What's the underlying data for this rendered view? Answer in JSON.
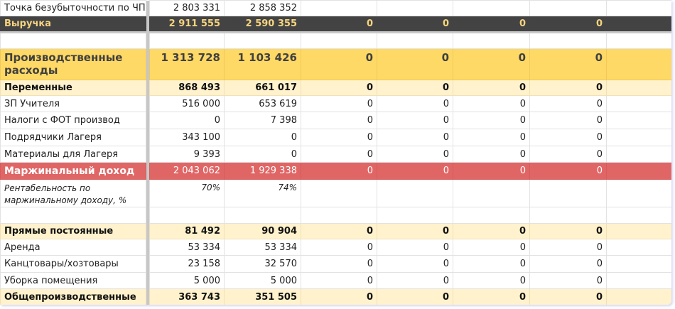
{
  "rows": [
    {
      "type": "plain",
      "label": "Точка безубыточности по ЧП",
      "values": [
        "2 803 331",
        "2 858 352",
        "",
        "",
        "",
        "",
        ""
      ]
    },
    {
      "type": "dark",
      "label": "Выручка",
      "values": [
        "2 911 555",
        "2 590 355",
        "0",
        "0",
        "0",
        "0",
        ""
      ]
    },
    {
      "type": "empty",
      "label": "",
      "values": [
        "",
        "",
        "",
        "",
        "",
        "",
        ""
      ]
    },
    {
      "type": "big",
      "label": "Производственные расходы",
      "values": [
        "1 313 728",
        "1 103 426",
        "0",
        "0",
        "0",
        "0",
        ""
      ]
    },
    {
      "type": "sub",
      "label": "Переменные",
      "values": [
        "868 493",
        "661 017",
        "0",
        "0",
        "0",
        "0",
        ""
      ]
    },
    {
      "type": "plain",
      "label": "ЗП Учителя",
      "values": [
        "516 000",
        "653 619",
        "0",
        "0",
        "0",
        "0",
        ""
      ]
    },
    {
      "type": "plain",
      "label": "Налоги с ФОТ производ",
      "values": [
        "0",
        "7 398",
        "0",
        "0",
        "0",
        "0",
        ""
      ]
    },
    {
      "type": "plain",
      "label": "Подрядчики Лагеря",
      "values": [
        "343 100",
        "0",
        "0",
        "0",
        "0",
        "0",
        ""
      ]
    },
    {
      "type": "plain",
      "label": "Материалы для Лагеря",
      "values": [
        "9 393",
        "0",
        "0",
        "0",
        "0",
        "0",
        ""
      ]
    },
    {
      "type": "red",
      "label": "Маржинальный доход",
      "values": [
        "2 043 062",
        "1 929 338",
        "0",
        "0",
        "0",
        "0",
        ""
      ]
    },
    {
      "type": "ital",
      "label": "Рентабельность по маржинальному доходу, %",
      "values": [
        "70%",
        "74%",
        "",
        "",
        "",
        "",
        ""
      ]
    },
    {
      "type": "empty",
      "label": "",
      "values": [
        "",
        "",
        "",
        "",
        "",
        "",
        ""
      ]
    },
    {
      "type": "sub",
      "label": "Прямые постоянные",
      "values": [
        "81 492",
        "90 904",
        "0",
        "0",
        "0",
        "0",
        ""
      ]
    },
    {
      "type": "plain",
      "label": "Аренда",
      "values": [
        "53 334",
        "53 334",
        "0",
        "0",
        "0",
        "0",
        ""
      ]
    },
    {
      "type": "plain",
      "label": "Канцтовары/хозтовары",
      "values": [
        "23 158",
        "32 570",
        "0",
        "0",
        "0",
        "0",
        ""
      ]
    },
    {
      "type": "plain",
      "label": "Уборка помещения",
      "values": [
        "5 000",
        "5 000",
        "0",
        "0",
        "0",
        "0",
        ""
      ]
    },
    {
      "type": "sub",
      "label": "Общепроизводственные",
      "values": [
        "363 743",
        "351 505",
        "0",
        "0",
        "0",
        "0",
        ""
      ]
    }
  ]
}
